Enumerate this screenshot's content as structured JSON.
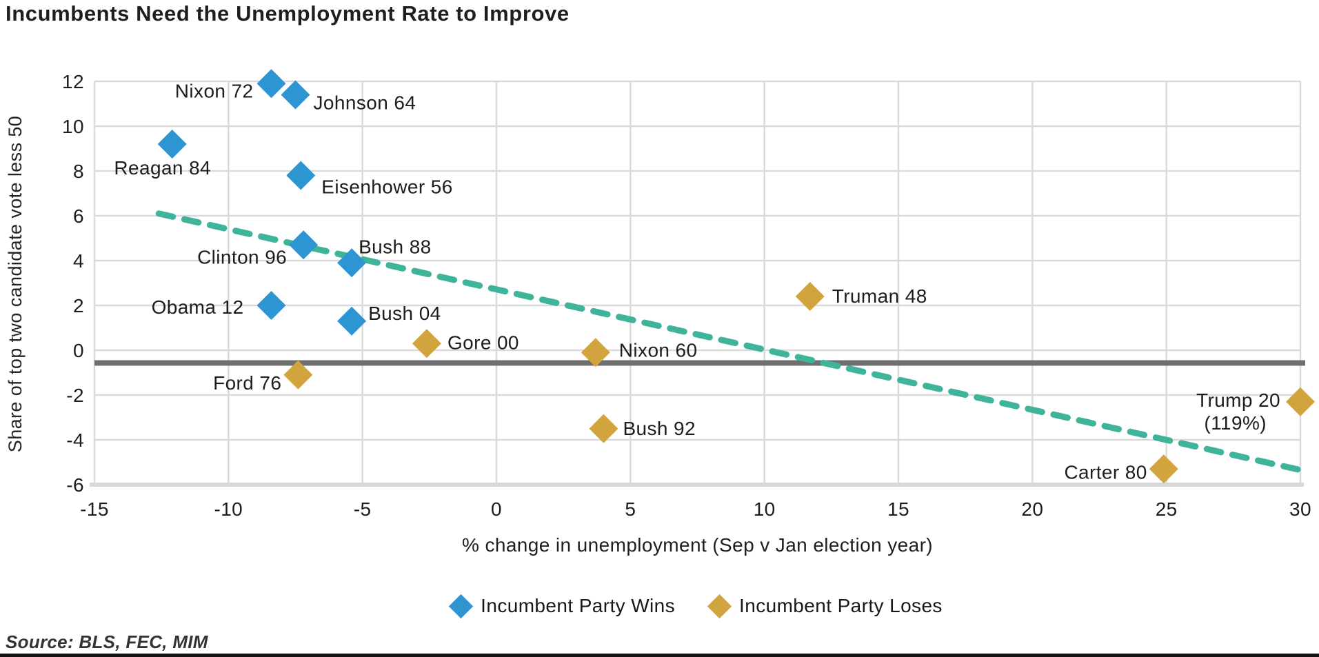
{
  "title": "Incumbents Need the Unemployment Rate to Improve",
  "source": "Source: BLS, FEC, MIM",
  "colors": {
    "wins": "#2E95D3",
    "loses": "#D2A43E",
    "trend": "#40B39B",
    "reference_line": "#6F6F6F",
    "grid": "#DADADA",
    "axis": "#D8D8D8",
    "text": "#1D1D1D"
  },
  "legend": [
    {
      "label": "Incumbent Party Wins",
      "color": "#2E95D3",
      "icon": "blue-diamond-icon"
    },
    {
      "label": "Incumbent Party Loses",
      "color": "#D2A43E",
      "icon": "gold-diamond-icon"
    }
  ],
  "chart_data": {
    "type": "scatter",
    "title": "Incumbents Need the Unemployment Rate to Improve",
    "xlabel": "% change in unemployment (Sep v Jan election year)",
    "ylabel": "Share of top two candidate vote less 50",
    "xlim": [
      -15,
      30
    ],
    "ylim": [
      -6,
      12
    ],
    "xticks": [
      -15,
      -10,
      -5,
      0,
      5,
      10,
      15,
      20,
      25,
      30
    ],
    "yticks": [
      12,
      10,
      8,
      6,
      4,
      2,
      0,
      -2,
      -4,
      -6
    ],
    "grid": true,
    "legend_position": "bottom",
    "series": [
      {
        "name": "Incumbent Party Wins",
        "color": "#2E95D3",
        "points": [
          {
            "label": "Nixon 72",
            "x": -8.4,
            "y": 11.9,
            "label_anchor": "end",
            "label_dx": -26,
            "label_dy": 20
          },
          {
            "label": "Johnson 64",
            "x": -7.5,
            "y": 11.4,
            "label_anchor": "start",
            "label_dx": 26,
            "label_dy": 21
          },
          {
            "label": "Reagan 84",
            "x": -12.1,
            "y": 9.2,
            "label_anchor": "middle",
            "label_dx": -14,
            "label_dy": 44
          },
          {
            "label": "Eisenhower 56",
            "x": -7.3,
            "y": 7.8,
            "label_anchor": "start",
            "label_dx": 30,
            "label_dy": 26
          },
          {
            "label": "Clinton 96",
            "x": -7.2,
            "y": 4.7,
            "label_anchor": "end",
            "label_dx": -24,
            "label_dy": 27
          },
          {
            "label": "Bush 88",
            "x": -5.4,
            "y": 3.9,
            "label_anchor": "start",
            "label_dx": 10,
            "label_dy": -14
          },
          {
            "label": "Obama 12",
            "x": -8.4,
            "y": 2.0,
            "label_anchor": "end",
            "label_dx": -40,
            "label_dy": 12
          },
          {
            "label": "Bush 04",
            "x": -5.4,
            "y": 1.3,
            "label_anchor": "start",
            "label_dx": 24,
            "label_dy": -2
          }
        ]
      },
      {
        "name": "Incumbent Party Loses",
        "color": "#D2A43E",
        "points": [
          {
            "label": "Gore 00",
            "x": -2.6,
            "y": 0.3,
            "label_anchor": "start",
            "label_dx": 30,
            "label_dy": 8
          },
          {
            "label": "Nixon 60",
            "x": 3.7,
            "y": -0.1,
            "label_anchor": "start",
            "label_dx": 34,
            "label_dy": 6
          },
          {
            "label": "Truman 48",
            "x": 11.7,
            "y": 2.4,
            "label_anchor": "start",
            "label_dx": 32,
            "label_dy": 9
          },
          {
            "label": "Ford 76",
            "x": -7.4,
            "y": -1.1,
            "label_anchor": "end",
            "label_dx": -24,
            "label_dy": 21
          },
          {
            "label": "Bush 92",
            "x": 4.0,
            "y": -3.5,
            "label_anchor": "start",
            "label_dx": 28,
            "label_dy": 9
          },
          {
            "label": "Trump 20 (119%)",
            "label_lines": [
              "Trump 20",
              "(119%)"
            ],
            "x": 30,
            "y": -2.3,
            "label_anchor": "end",
            "label_dx": -29,
            "label_dy": 7,
            "line2_dx": -49,
            "line_height": 33
          },
          {
            "label": "Carter 80",
            "x": 24.9,
            "y": -5.3,
            "label_anchor": "end",
            "label_dx": -24,
            "label_dy": 14
          }
        ]
      }
    ],
    "trend_line": {
      "x1": -12.6,
      "y1": 6.1,
      "x2": 30.2,
      "y2": -5.4,
      "style": "dashed",
      "color": "#40B39B"
    },
    "reference_line": {
      "y": -0.57,
      "color": "#6F6F6F"
    }
  }
}
